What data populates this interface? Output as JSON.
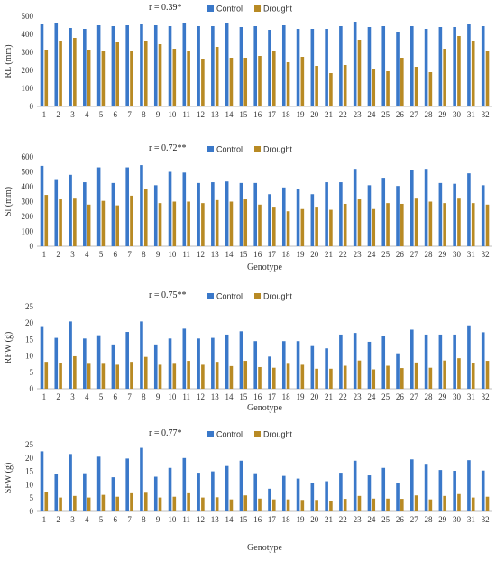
{
  "colors": {
    "control": "#3a78c9",
    "drought": "#b88a24"
  },
  "chart_data": [
    {
      "type": "bar",
      "annotation": "r = 0.39*",
      "xlabel": "",
      "ylabel": "RL (mm)",
      "ylim": [
        0,
        500
      ],
      "yticks": [
        0,
        100,
        200,
        300,
        400,
        500
      ],
      "categories": [
        "1",
        "2",
        "3",
        "4",
        "5",
        "6",
        "7",
        "8",
        "9",
        "10",
        "11",
        "12",
        "13",
        "14",
        "15",
        "16",
        "17",
        "18",
        "19",
        "20",
        "21",
        "22",
        "23",
        "24",
        "25",
        "26",
        "27",
        "28",
        "29",
        "30",
        "31",
        "32"
      ],
      "legend": [
        "Control",
        "Drought"
      ],
      "series": [
        {
          "name": "Control",
          "values": [
            455,
            460,
            435,
            430,
            450,
            445,
            450,
            455,
            450,
            445,
            465,
            445,
            445,
            465,
            440,
            445,
            425,
            450,
            430,
            430,
            430,
            445,
            470,
            440,
            445,
            415,
            445,
            430,
            440,
            440,
            455,
            445
          ]
        },
        {
          "name": "Drought",
          "values": [
            315,
            365,
            380,
            315,
            305,
            355,
            305,
            360,
            345,
            320,
            305,
            265,
            330,
            270,
            270,
            280,
            310,
            245,
            275,
            225,
            185,
            230,
            370,
            210,
            195,
            270,
            220,
            190,
            320,
            390,
            360,
            305
          ]
        }
      ]
    },
    {
      "type": "bar",
      "annotation": "r = 0.72**",
      "xlabel": "Genotype",
      "ylabel": "Sl (mm)",
      "ylim": [
        0,
        600
      ],
      "yticks": [
        0,
        100,
        200,
        300,
        400,
        500,
        600
      ],
      "categories": [
        "1",
        "2",
        "3",
        "4",
        "5",
        "6",
        "7",
        "8",
        "9",
        "10",
        "11",
        "12",
        "13",
        "14",
        "15",
        "16",
        "17",
        "18",
        "19",
        "20",
        "21",
        "22",
        "23",
        "24",
        "25",
        "26",
        "27",
        "28",
        "29",
        "30",
        "31",
        "32"
      ],
      "legend": [
        "Control",
        "Drought"
      ],
      "series": [
        {
          "name": "Control",
          "values": [
            540,
            445,
            480,
            430,
            530,
            425,
            530,
            545,
            410,
            500,
            495,
            425,
            430,
            435,
            425,
            425,
            350,
            395,
            385,
            350,
            430,
            430,
            520,
            410,
            460,
            405,
            515,
            520,
            425,
            420,
            490,
            410
          ]
        },
        {
          "name": "Drought",
          "values": [
            345,
            315,
            320,
            280,
            305,
            275,
            340,
            385,
            290,
            300,
            300,
            290,
            310,
            300,
            315,
            280,
            260,
            235,
            250,
            260,
            245,
            285,
            315,
            250,
            290,
            285,
            320,
            300,
            290,
            320,
            290,
            280
          ]
        }
      ]
    },
    {
      "type": "bar",
      "annotation": "r = 0.75**",
      "xlabel": "Genotype",
      "ylabel": "RFW (g)",
      "ylim": [
        0,
        25
      ],
      "yticks": [
        0,
        5,
        10,
        15,
        20,
        25
      ],
      "categories": [
        "1",
        "2",
        "3",
        "4",
        "5",
        "6",
        "7",
        "8",
        "9",
        "10",
        "11",
        "12",
        "13",
        "14",
        "15",
        "16",
        "17",
        "18",
        "19",
        "20",
        "21",
        "22",
        "23",
        "24",
        "25",
        "26",
        "27",
        "28",
        "29",
        "30",
        "31",
        "32"
      ],
      "legend": [
        "Control",
        "Drought"
      ],
      "series": [
        {
          "name": "Control",
          "values": [
            18.8,
            15.5,
            20.5,
            15.3,
            16.3,
            13.5,
            17.3,
            20.5,
            13.5,
            15.3,
            18.3,
            15.3,
            15.5,
            16.5,
            17.5,
            14.5,
            9.8,
            14.5,
            14.5,
            13,
            12.3,
            16.5,
            17,
            14.3,
            16,
            10.8,
            18,
            16.5,
            16.5,
            16.5,
            19.3,
            17.2
          ]
        },
        {
          "name": "Drought",
          "values": [
            8.2,
            7.9,
            9.9,
            7.6,
            7.6,
            7.3,
            8.2,
            9.7,
            7.3,
            7.6,
            8.5,
            7.3,
            8.2,
            6.9,
            8.5,
            6.6,
            6.4,
            7.6,
            7.3,
            6.1,
            6.1,
            7.0,
            8.6,
            5.9,
            7.0,
            6.3,
            8.0,
            6.4,
            8.6,
            9.3,
            7.9,
            8.5
          ]
        }
      ]
    },
    {
      "type": "bar",
      "annotation": "r = 0.77*",
      "xlabel": "Genotype",
      "ylabel": "SFW (g)",
      "ylim": [
        0,
        25
      ],
      "yticks": [
        0,
        5,
        10,
        15,
        20,
        25
      ],
      "categories": [
        "1",
        "2",
        "3",
        "4",
        "5",
        "6",
        "7",
        "8",
        "9",
        "10",
        "11",
        "12",
        "13",
        "14",
        "15",
        "16",
        "17",
        "18",
        "19",
        "20",
        "21",
        "22",
        "23",
        "24",
        "25",
        "26",
        "27",
        "28",
        "29",
        "30",
        "31",
        "32"
      ],
      "legend": [
        "Control",
        "Drought"
      ],
      "series": [
        {
          "name": "Control",
          "values": [
            22.5,
            14,
            21.5,
            14.3,
            20.5,
            12.8,
            19.8,
            23.8,
            13,
            16.3,
            20,
            14.5,
            15,
            17,
            19,
            14.3,
            8.5,
            13.3,
            12.3,
            10.5,
            11.3,
            14.5,
            19,
            13.5,
            16.3,
            10.5,
            19.5,
            17.5,
            15.5,
            15.2,
            19.2,
            15.3
          ]
        },
        {
          "name": "Drought",
          "values": [
            7.2,
            5.2,
            5.8,
            5.2,
            6.2,
            5.5,
            6.8,
            7,
            5.2,
            5.5,
            6.8,
            5.2,
            5.3,
            4.5,
            6,
            4.8,
            4.5,
            4.5,
            4.3,
            4.3,
            3.8,
            4.7,
            5.8,
            4.8,
            4.8,
            4.7,
            6,
            4.5,
            5.8,
            6.5,
            5.2,
            5.5
          ]
        }
      ]
    }
  ]
}
